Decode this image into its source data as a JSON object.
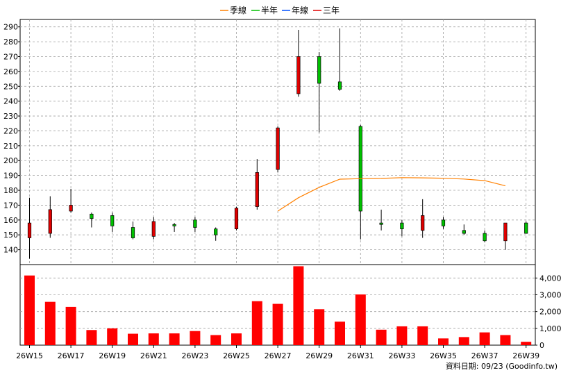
{
  "legend": [
    {
      "label": "季線",
      "color": "#ff8000"
    },
    {
      "label": "半年",
      "color": "#00c000"
    },
    {
      "label": "年線",
      "color": "#0050ff"
    },
    {
      "label": "三年",
      "color": "#e00000"
    }
  ],
  "source_text": "資料日期: 09/23  (Goodinfo.tw)",
  "chart_data": [
    {
      "type": "candlestick",
      "ylim": [
        130,
        295
      ],
      "yticks": [
        140,
        150,
        160,
        170,
        180,
        190,
        200,
        210,
        220,
        230,
        240,
        250,
        260,
        270,
        280,
        290
      ],
      "grid": true,
      "x": [
        "26W15",
        "26W16",
        "26W17",
        "26W18",
        "26W19",
        "26W20",
        "26W21",
        "26W22",
        "26W23",
        "26W24",
        "26W25",
        "26W26",
        "26W27",
        "26W28",
        "26W29",
        "26W30",
        "26W31",
        "26W32",
        "26W33",
        "26W34",
        "26W35",
        "26W36",
        "26W37",
        "26W38",
        "26W39"
      ],
      "x_tick_labels": [
        "26W15",
        "26W17",
        "26W19",
        "26W21",
        "26W23",
        "26W25",
        "26W27",
        "26W29",
        "26W31",
        "26W33",
        "26W35",
        "26W37",
        "26W39"
      ],
      "ohlc": [
        {
          "o": 148,
          "h": 175,
          "l": 134,
          "c": 158
        },
        {
          "o": 151,
          "h": 176,
          "l": 148,
          "c": 167
        },
        {
          "o": 166,
          "h": 181,
          "l": 165,
          "c": 170
        },
        {
          "o": 164,
          "h": 165,
          "l": 155,
          "c": 161
        },
        {
          "o": 163,
          "h": 165,
          "l": 152,
          "c": 156
        },
        {
          "o": 155,
          "h": 159,
          "l": 147,
          "c": 148
        },
        {
          "o": 149,
          "h": 162,
          "l": 147,
          "c": 159
        },
        {
          "o": 157,
          "h": 158,
          "l": 152,
          "c": 156
        },
        {
          "o": 160,
          "h": 162,
          "l": 152,
          "c": 155
        },
        {
          "o": 154,
          "h": 155,
          "l": 146,
          "c": 150
        },
        {
          "o": 154,
          "h": 169,
          "l": 153,
          "c": 168
        },
        {
          "o": 169,
          "h": 201,
          "l": 167,
          "c": 192
        },
        {
          "o": 194,
          "h": 223,
          "l": 192,
          "c": 222
        },
        {
          "o": 245,
          "h": 288,
          "l": 243,
          "c": 270
        },
        {
          "o": 270,
          "h": 273,
          "l": 219,
          "c": 252
        },
        {
          "o": 253,
          "h": 289,
          "l": 247,
          "c": 248
        },
        {
          "o": 223,
          "h": 224,
          "l": 147,
          "c": 166
        },
        {
          "o": 158,
          "h": 167,
          "l": 153,
          "c": 157
        },
        {
          "o": 158,
          "h": 160,
          "l": 149,
          "c": 154
        },
        {
          "o": 153,
          "h": 174,
          "l": 148,
          "c": 163
        },
        {
          "o": 160,
          "h": 162,
          "l": 154,
          "c": 156
        },
        {
          "o": 153,
          "h": 157,
          "l": 150,
          "c": 151
        },
        {
          "o": 151,
          "h": 153,
          "l": 145,
          "c": 146
        },
        {
          "o": 146,
          "h": 158,
          "l": 140,
          "c": 158
        },
        {
          "o": 158,
          "h": 159,
          "l": 151,
          "c": 151
        }
      ],
      "up_color": "#e00000",
      "down_color": "#00c000",
      "ma_quarter": {
        "name": "季線",
        "color": "#ff8000",
        "start_index": 12,
        "values": [
          166,
          175,
          182,
          187.5,
          187.8,
          188,
          188.5,
          188.4,
          188.1,
          187.6,
          186.5,
          183
        ]
      }
    },
    {
      "type": "bar",
      "ylim": [
        0,
        4800
      ],
      "yticks": [
        0,
        1000,
        2000,
        3000,
        4000
      ],
      "ytick_labels": [
        "0",
        "1,000",
        "2,000",
        "3,000",
        "4,000"
      ],
      "grid": true,
      "color": "#ff0000",
      "values": [
        4150,
        2580,
        2280,
        900,
        1000,
        680,
        700,
        700,
        840,
        600,
        700,
        2620,
        2460,
        4700,
        2140,
        1400,
        3020,
        920,
        1120,
        1120,
        400,
        480,
        760,
        600,
        200
      ]
    }
  ]
}
